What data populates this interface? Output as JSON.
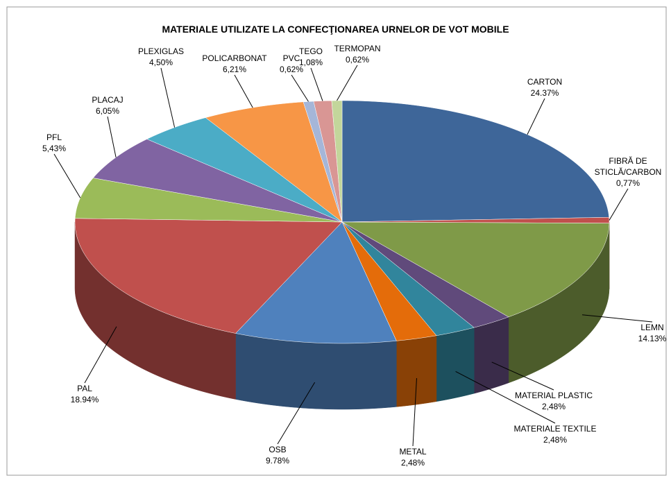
{
  "chart_data": {
    "type": "pie3d",
    "title": "MATERIALE UTILIZATE LA CONFECŢIONAREA URNELOR DE VOT MOBILE",
    "categories": [
      "CARTON",
      "FIBRĂ DE STICLĂ/CARBON",
      "LEMN",
      "MATERIAL PLASTIC",
      "MATERIALE TEXTILE",
      "METAL",
      "OSB",
      "PAL",
      "PFL",
      "PLACAJ",
      "PLEXIGLAS",
      "POLICARBONAT",
      "PVC",
      "TEGO",
      "TERMOPAN"
    ],
    "values": [
      24.37,
      0.77,
      14.13,
      2.48,
      2.48,
      2.48,
      9.78,
      18.94,
      5.43,
      6.05,
      4.5,
      6.21,
      0.62,
      1.08,
      0.62
    ],
    "value_labels": [
      "24.37%",
      "0,77%",
      "14.13%",
      "2,48%",
      "2,48%",
      "2,48%",
      "9.78%",
      "18.94%",
      "5,43%",
      "6,05%",
      "4,50%",
      "6,21%",
      "0,62%",
      "1,08%",
      "0,62%"
    ],
    "colors": [
      "#3e6699",
      "#c0504d",
      "#7f9a48",
      "#604a7b",
      "#31859c",
      "#e46c0a",
      "#4f81bd",
      "#c0504d",
      "#9bbb59",
      "#8064a2",
      "#4bacc6",
      "#f79646",
      "#a5b6d8",
      "#d99694",
      "#c3d69b"
    ]
  }
}
